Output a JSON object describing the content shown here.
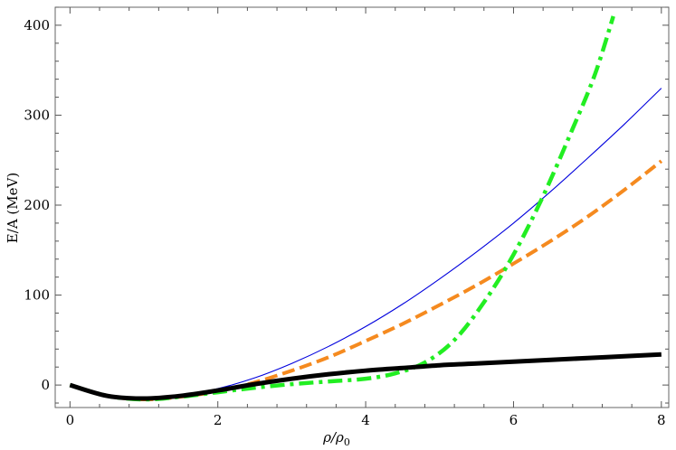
{
  "chart_data": {
    "type": "line",
    "xlabel_main": "ρ/ρ",
    "xlabel_sub": "0",
    "ylabel": "E/A (MeV)",
    "xlim": [
      -0.2,
      8.1
    ],
    "ylim": [
      -25,
      420
    ],
    "x_ticks": [
      0,
      2,
      4,
      6,
      8
    ],
    "x_tick_labels": [
      "0",
      "2",
      "4",
      "6",
      "8"
    ],
    "y_ticks": [
      0,
      100,
      200,
      300,
      400
    ],
    "y_tick_labels": [
      "0",
      "100",
      "200",
      "300",
      "400"
    ],
    "grid": false,
    "series": [
      {
        "color": "#0000dd",
        "style": "thin-solid",
        "points": [
          [
            0,
            0
          ],
          [
            0.5,
            -12
          ],
          [
            1,
            -16
          ],
          [
            1.5,
            -12
          ],
          [
            2,
            -4
          ],
          [
            2.5,
            8
          ],
          [
            3,
            24
          ],
          [
            3.5,
            43
          ],
          [
            4,
            65
          ],
          [
            4.5,
            90
          ],
          [
            5,
            118
          ],
          [
            5.5,
            148
          ],
          [
            6,
            180
          ],
          [
            6.5,
            215
          ],
          [
            7,
            252
          ],
          [
            7.5,
            290
          ],
          [
            8,
            330
          ]
        ]
      },
      {
        "color": "#f58a1f",
        "style": "dashed",
        "points": [
          [
            0,
            0
          ],
          [
            0.5,
            -12
          ],
          [
            1,
            -16
          ],
          [
            1.5,
            -13
          ],
          [
            2,
            -7
          ],
          [
            2.5,
            3
          ],
          [
            3,
            16
          ],
          [
            3.5,
            31
          ],
          [
            4,
            49
          ],
          [
            4.5,
            68
          ],
          [
            5,
            89
          ],
          [
            5.5,
            111
          ],
          [
            6,
            135
          ],
          [
            6.5,
            160
          ],
          [
            7,
            187
          ],
          [
            7.5,
            217
          ],
          [
            8,
            249
          ]
        ]
      },
      {
        "color": "#22ee22",
        "style": "dash-dot",
        "points": [
          [
            0,
            0
          ],
          [
            0.5,
            -12
          ],
          [
            1,
            -16
          ],
          [
            1.5,
            -13
          ],
          [
            2,
            -8
          ],
          [
            2.5,
            -3
          ],
          [
            3,
            1
          ],
          [
            3.5,
            4
          ],
          [
            4,
            7
          ],
          [
            4.4,
            13
          ],
          [
            4.8,
            25
          ],
          [
            5.2,
            50
          ],
          [
            5.6,
            92
          ],
          [
            6,
            145
          ],
          [
            6.4,
            210
          ],
          [
            6.8,
            285
          ],
          [
            7.1,
            345
          ],
          [
            7.35,
            410
          ]
        ]
      },
      {
        "color": "#000000",
        "style": "thick-solid",
        "points": [
          [
            0,
            0
          ],
          [
            0.5,
            -12
          ],
          [
            1,
            -15
          ],
          [
            1.5,
            -12
          ],
          [
            2,
            -6
          ],
          [
            2.5,
            1
          ],
          [
            3,
            7
          ],
          [
            3.5,
            12
          ],
          [
            4,
            16
          ],
          [
            4.5,
            19
          ],
          [
            5,
            22
          ],
          [
            5.5,
            24
          ],
          [
            6,
            26
          ],
          [
            6.5,
            28
          ],
          [
            7,
            30
          ],
          [
            7.5,
            32
          ],
          [
            8,
            34
          ]
        ]
      }
    ]
  }
}
